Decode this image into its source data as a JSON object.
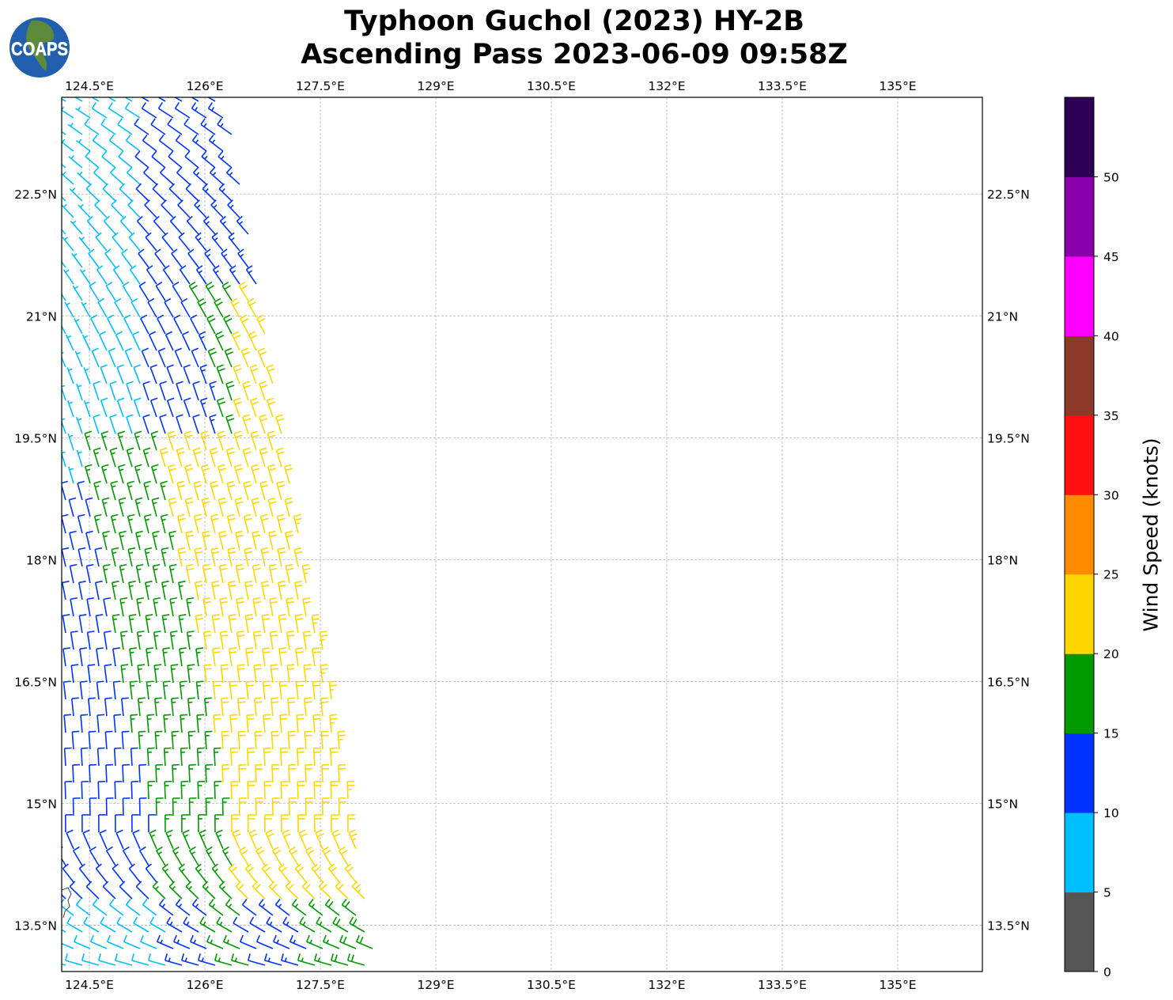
{
  "title": {
    "line1": "Typhoon Guchol (2023) HY-2B",
    "line2": "Ascending Pass 2023-06-09 09:58Z"
  },
  "logo": {
    "text": "COAPS"
  },
  "chart_data": {
    "type": "wind-barb map",
    "lon_range": [
      124.14,
      136.1
    ],
    "lat_range": [
      12.93,
      23.69
    ],
    "lon_ticks": [
      "124.5°E",
      "126°E",
      "127.5°E",
      "129°E",
      "130.5°E",
      "132°E",
      "133.5°E",
      "135°E"
    ],
    "lon_tick_values": [
      124.5,
      126,
      127.5,
      129,
      130.5,
      132,
      133.5,
      135
    ],
    "lat_ticks": [
      "22.5°N",
      "21°N",
      "19.5°N",
      "18°N",
      "16.5°N",
      "15°N",
      "13.5°N"
    ],
    "lat_tick_values": [
      22.5,
      21,
      19.5,
      18,
      16.5,
      15,
      13.5
    ],
    "grid": true,
    "colorbar": {
      "label": "Wind Speed (knots)",
      "range": [
        0,
        55
      ],
      "tick_labels": [
        "0",
        "5",
        "10",
        "15",
        "20",
        "25",
        "30",
        "35",
        "40",
        "45",
        "50"
      ],
      "bins": [
        {
          "min": 0,
          "max": 5,
          "color": "#555555"
        },
        {
          "min": 5,
          "max": 10,
          "color": "#00bfff"
        },
        {
          "min": 10,
          "max": 15,
          "color": "#0033ff"
        },
        {
          "min": 15,
          "max": 20,
          "color": "#009900"
        },
        {
          "min": 20,
          "max": 25,
          "color": "#ffd700"
        },
        {
          "min": 25,
          "max": 30,
          "color": "#ff8c00"
        },
        {
          "min": 30,
          "max": 35,
          "color": "#ff1010"
        },
        {
          "min": 35,
          "max": 40,
          "color": "#8b3a2a"
        },
        {
          "min": 40,
          "max": 45,
          "color": "#ff00ff"
        },
        {
          "min": 45,
          "max": 50,
          "color": "#8800aa"
        },
        {
          "min": 50,
          "max": 55,
          "color": "#2e0055"
        }
      ]
    }
  }
}
